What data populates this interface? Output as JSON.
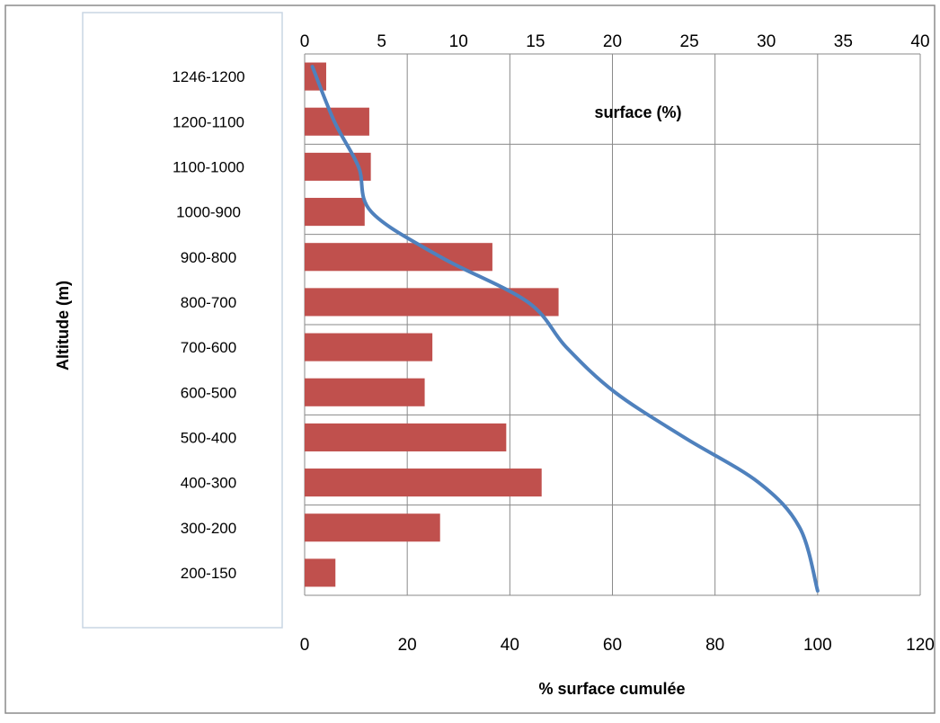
{
  "chart_data": {
    "type": "bar",
    "orientation": "horizontal",
    "categories": [
      "1246-1200",
      "1200-1100",
      "1100-1000",
      "1000-900",
      "900-800",
      "800-700",
      "700-600",
      "600-500",
      "500-400",
      "400-300",
      "300-200",
      "200-150"
    ],
    "series": [
      {
        "type": "bar",
        "axis": "top",
        "values": [
          1.4,
          4.2,
          4.3,
          3.9,
          12.2,
          16.5,
          8.3,
          7.8,
          13.1,
          15.4,
          8.8,
          2.0
        ],
        "color": "#c0504d"
      },
      {
        "type": "line",
        "axis": "bottom",
        "values": [
          1.5,
          5.8,
          10.5,
          13.0,
          26.5,
          43.5,
          51.0,
          60.5,
          74.0,
          88.5,
          96.5,
          100.0
        ],
        "color": "#4f81bd"
      }
    ],
    "top_axis": {
      "title": "surface (%)",
      "range": [
        0,
        40
      ],
      "ticks": [
        0,
        5,
        10,
        15,
        20,
        25,
        30,
        35,
        40
      ]
    },
    "bottom_axis": {
      "title": "% surface cumulée",
      "range": [
        0,
        120
      ],
      "ticks": [
        0,
        20,
        40,
        60,
        80,
        100,
        120
      ]
    },
    "ylabel": "Altitude (m)",
    "grid": true,
    "legend": "none"
  }
}
